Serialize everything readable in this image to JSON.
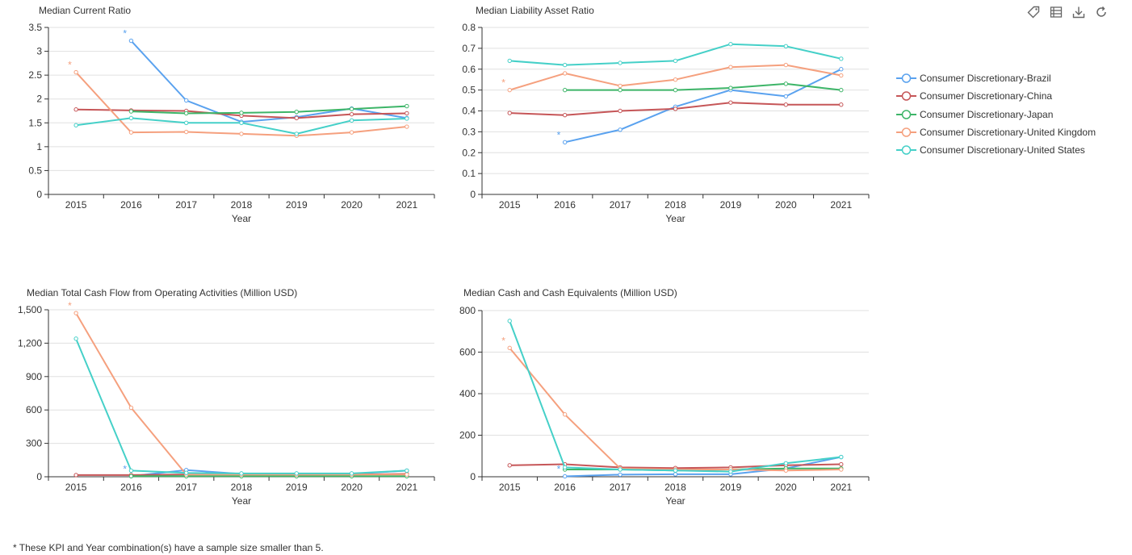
{
  "colors": {
    "Brazil": "#5AA2EF",
    "China": "#C65658",
    "Japan": "#3DB568",
    "United Kingdom": "#F5A07E",
    "United States": "#45D0C8"
  },
  "toolbar": {
    "items": [
      {
        "name": "tag-icon"
      },
      {
        "name": "data-view-icon"
      },
      {
        "name": "download-icon"
      },
      {
        "name": "refresh-icon"
      }
    ]
  },
  "legend": {
    "items": [
      {
        "label": "Consumer Discretionary-Brazil",
        "key": "Brazil"
      },
      {
        "label": "Consumer Discretionary-China",
        "key": "China"
      },
      {
        "label": "Consumer Discretionary-Japan",
        "key": "Japan"
      },
      {
        "label": "Consumer Discretionary-United Kingdom",
        "key": "United Kingdom"
      },
      {
        "label": "Consumer Discretionary-United States",
        "key": "United States"
      }
    ]
  },
  "footnote": "* These KPI and Year combination(s) have a sample size smaller than 5.",
  "chart_data": [
    {
      "type": "line",
      "title": "Median Current Ratio",
      "xlabel": "Year",
      "categories": [
        "2015",
        "2016",
        "2017",
        "2018",
        "2019",
        "2020",
        "2021"
      ],
      "ylim": [
        0,
        3.5
      ],
      "yticks": [
        0,
        0.5,
        1,
        1.5,
        2,
        2.5,
        3,
        3.5
      ],
      "ytick_labels": [
        "0",
        "0.5",
        "1",
        "1.5",
        "2",
        "2.5",
        "3",
        "3.5"
      ],
      "grid": true,
      "series": [
        {
          "name": "Consumer Discretionary-Brazil",
          "key": "Brazil",
          "values": [
            null,
            3.22,
            1.97,
            1.52,
            1.62,
            1.8,
            1.6
          ]
        },
        {
          "name": "Consumer Discretionary-China",
          "key": "China",
          "values": [
            1.78,
            1.76,
            1.75,
            1.65,
            1.6,
            1.68,
            1.7
          ]
        },
        {
          "name": "Consumer Discretionary-Japan",
          "key": "Japan",
          "values": [
            null,
            1.74,
            1.7,
            1.71,
            1.73,
            1.79,
            1.85
          ]
        },
        {
          "name": "Consumer Discretionary-United Kingdom",
          "key": "United Kingdom",
          "values": [
            2.56,
            1.3,
            1.31,
            1.27,
            1.23,
            1.3,
            1.42
          ]
        },
        {
          "name": "Consumer Discretionary-United States",
          "key": "United States",
          "values": [
            1.45,
            1.6,
            1.5,
            1.5,
            1.27,
            1.55,
            1.59
          ]
        }
      ],
      "annotations": [
        {
          "text": "*",
          "key": "Brazil",
          "x": "2016"
        },
        {
          "text": "*",
          "key": "United Kingdom",
          "x": "2015"
        }
      ]
    },
    {
      "type": "line",
      "title": "Median Liability Asset Ratio",
      "xlabel": "Year",
      "categories": [
        "2015",
        "2016",
        "2017",
        "2018",
        "2019",
        "2020",
        "2021"
      ],
      "ylim": [
        0,
        0.8
      ],
      "yticks": [
        0,
        0.1,
        0.2,
        0.3,
        0.4,
        0.5,
        0.6,
        0.7,
        0.8
      ],
      "ytick_labels": [
        "0",
        "0.1",
        "0.2",
        "0.3",
        "0.4",
        "0.5",
        "0.6",
        "0.7",
        "0.8"
      ],
      "grid": true,
      "series": [
        {
          "name": "Consumer Discretionary-Brazil",
          "key": "Brazil",
          "values": [
            null,
            0.25,
            0.31,
            0.42,
            0.5,
            0.47,
            0.6
          ]
        },
        {
          "name": "Consumer Discretionary-China",
          "key": "China",
          "values": [
            0.39,
            0.38,
            0.4,
            0.41,
            0.44,
            0.43,
            0.43
          ]
        },
        {
          "name": "Consumer Discretionary-Japan",
          "key": "Japan",
          "values": [
            null,
            0.5,
            0.5,
            0.5,
            0.51,
            0.53,
            0.5
          ]
        },
        {
          "name": "Consumer Discretionary-United Kingdom",
          "key": "United Kingdom",
          "values": [
            0.5,
            0.58,
            0.52,
            0.55,
            0.61,
            0.62,
            0.57
          ]
        },
        {
          "name": "Consumer Discretionary-United States",
          "key": "United States",
          "values": [
            0.64,
            0.62,
            0.63,
            0.64,
            0.72,
            0.71,
            0.65
          ]
        }
      ],
      "annotations": [
        {
          "text": "*",
          "key": "Brazil",
          "x": "2016"
        },
        {
          "text": "*",
          "key": "United Kingdom",
          "x": "2015"
        }
      ]
    },
    {
      "type": "line",
      "title": "Median Total Cash Flow from Operating Activities (Million USD)",
      "xlabel": "Year",
      "categories": [
        "2015",
        "2016",
        "2017",
        "2018",
        "2019",
        "2020",
        "2021"
      ],
      "ylim": [
        0,
        1500
      ],
      "yticks": [
        0,
        300,
        600,
        900,
        1200,
        1500
      ],
      "ytick_labels": [
        "0",
        "300",
        "600",
        "900",
        "1,200",
        "1,500"
      ],
      "grid": true,
      "series": [
        {
          "name": "Consumer Discretionary-Brazil",
          "key": "Brazil",
          "values": [
            null,
            5,
            60,
            25,
            25,
            25,
            55
          ]
        },
        {
          "name": "Consumer Discretionary-China",
          "key": "China",
          "values": [
            15,
            15,
            20,
            20,
            20,
            20,
            25
          ]
        },
        {
          "name": "Consumer Discretionary-Japan",
          "key": "Japan",
          "values": [
            null,
            5,
            5,
            5,
            5,
            5,
            5
          ]
        },
        {
          "name": "Consumer Discretionary-United Kingdom",
          "key": "United Kingdom",
          "values": [
            1470,
            620,
            20,
            20,
            20,
            20,
            20
          ]
        },
        {
          "name": "Consumer Discretionary-United States",
          "key": "United States",
          "values": [
            1240,
            55,
            35,
            30,
            30,
            30,
            55
          ]
        }
      ],
      "annotations": [
        {
          "text": "*",
          "key": "Brazil",
          "x": "2016"
        },
        {
          "text": "*",
          "key": "United Kingdom",
          "x": "2015"
        }
      ]
    },
    {
      "type": "line",
      "title": "Median Cash and Cash Equivalents (Million USD)",
      "xlabel": "Year",
      "categories": [
        "2015",
        "2016",
        "2017",
        "2018",
        "2019",
        "2020",
        "2021"
      ],
      "ylim": [
        0,
        800
      ],
      "yticks": [
        0,
        200,
        400,
        600,
        800
      ],
      "ytick_labels": [
        "0",
        "200",
        "400",
        "600",
        "800"
      ],
      "grid": true,
      "series": [
        {
          "name": "Consumer Discretionary-Brazil",
          "key": "Brazil",
          "values": [
            null,
            2,
            10,
            12,
            12,
            40,
            95
          ]
        },
        {
          "name": "Consumer Discretionary-China",
          "key": "China",
          "values": [
            55,
            60,
            45,
            42,
            45,
            55,
            60
          ]
        },
        {
          "name": "Consumer Discretionary-Japan",
          "key": "Japan",
          "values": [
            null,
            35,
            35,
            30,
            35,
            40,
            40
          ]
        },
        {
          "name": "Consumer Discretionary-United Kingdom",
          "key": "United Kingdom",
          "values": [
            620,
            300,
            40,
            35,
            35,
            30,
            35
          ]
        },
        {
          "name": "Consumer Discretionary-United States",
          "key": "United States",
          "values": [
            750,
            45,
            35,
            30,
            25,
            65,
            95
          ]
        }
      ],
      "annotations": [
        {
          "text": "*",
          "key": "Brazil",
          "x": "2016"
        },
        {
          "text": "*",
          "key": "United Kingdom",
          "x": "2015"
        }
      ]
    }
  ]
}
